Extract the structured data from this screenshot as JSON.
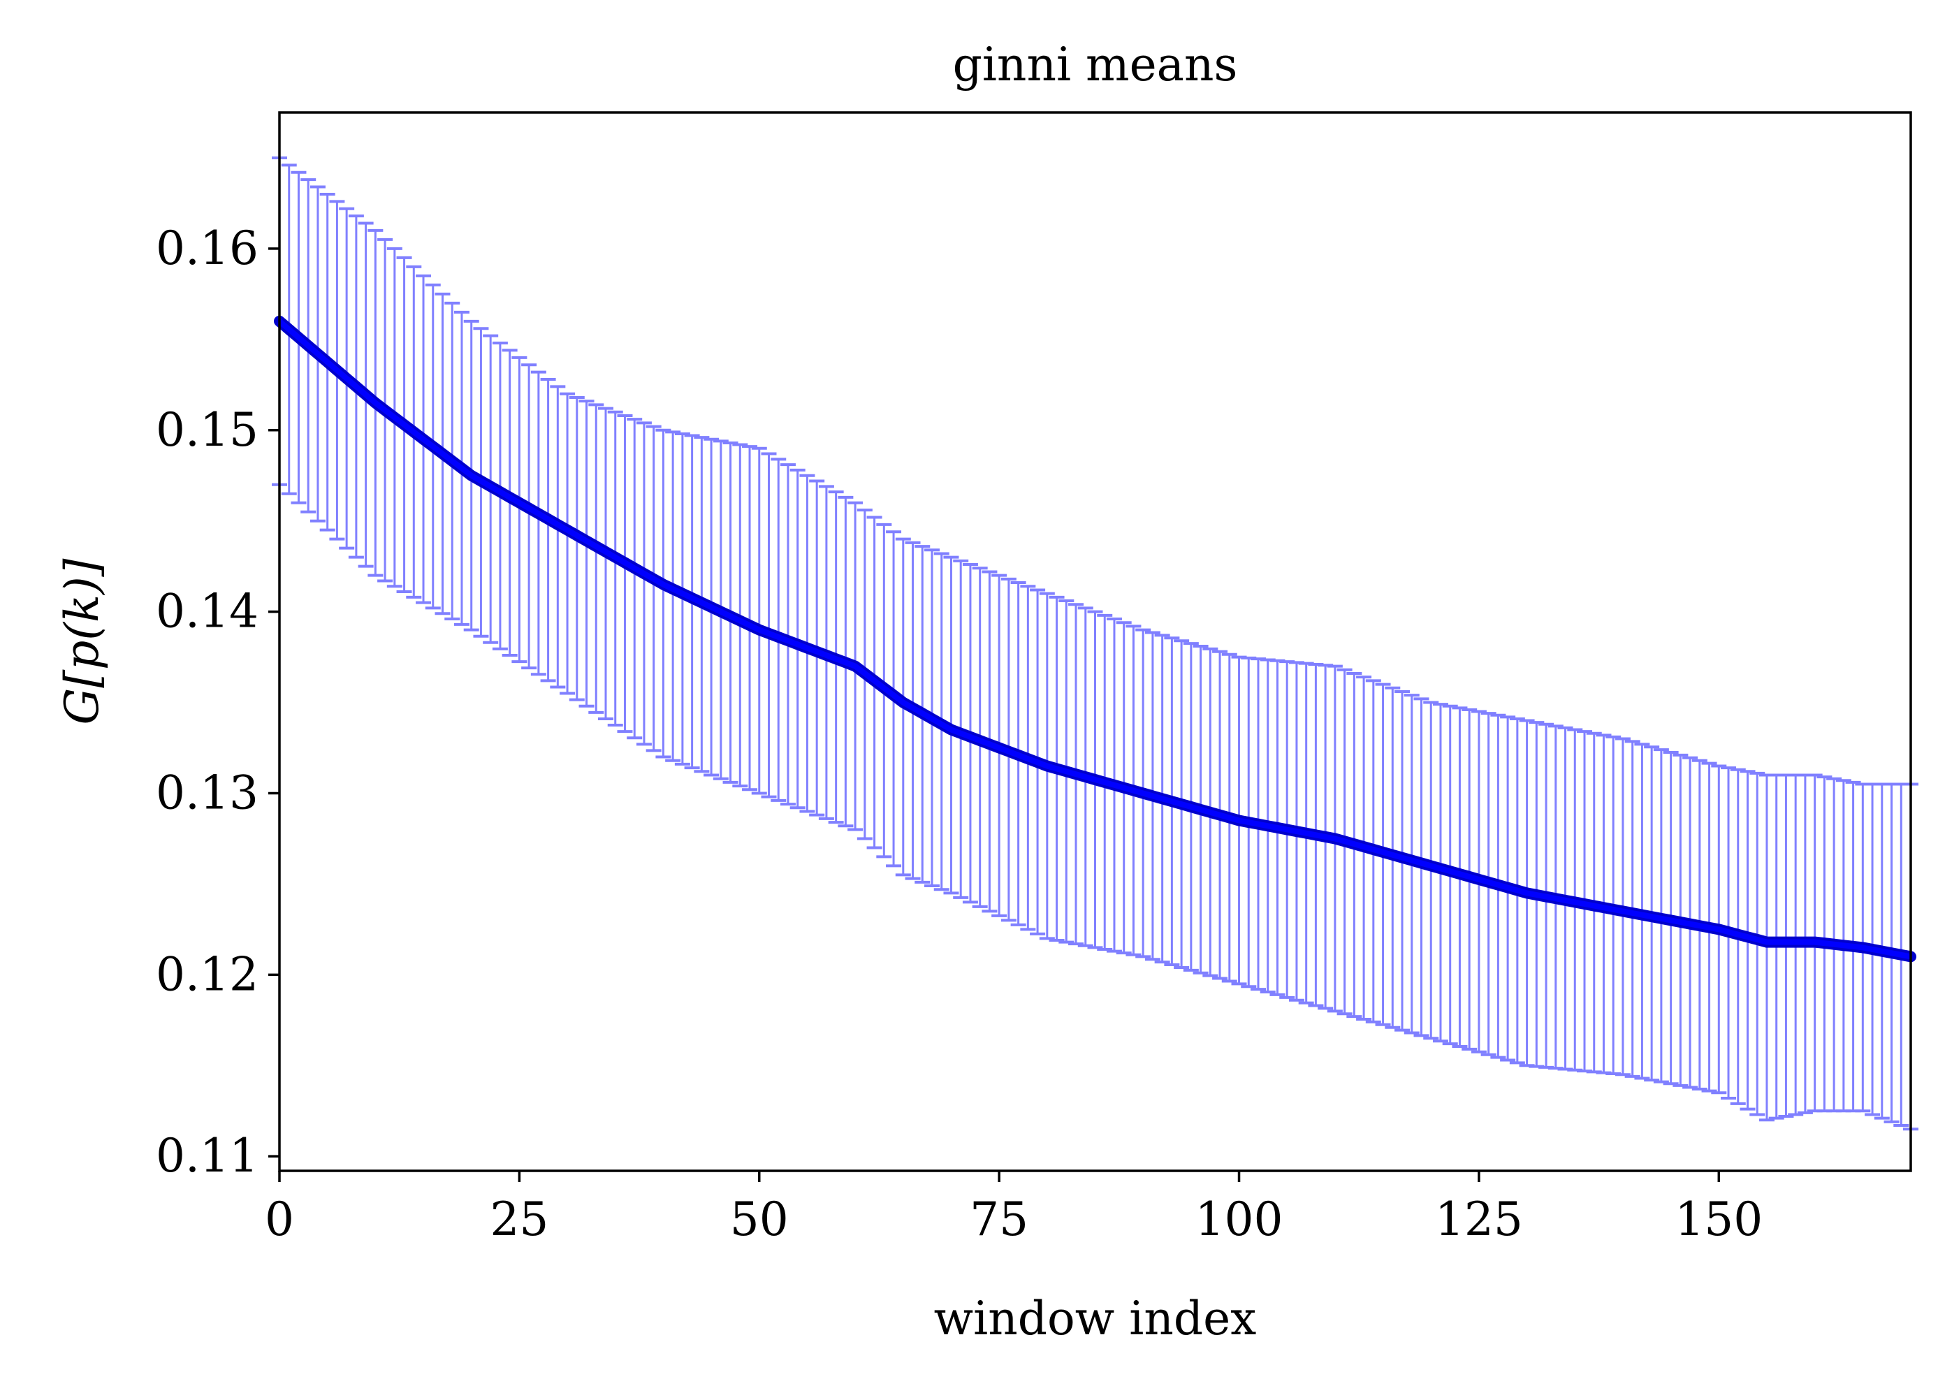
{
  "chart_data": {
    "type": "line",
    "title": "ginni means",
    "xlabel": "window index",
    "ylabel": "G[p(k)]",
    "xlim": [
      0,
      170
    ],
    "ylim": [
      0.1092,
      0.1675
    ],
    "xticks": [
      0,
      25,
      50,
      75,
      100,
      125,
      150
    ],
    "xtick_labels": [
      "0",
      "25",
      "50",
      "75",
      "100",
      "125",
      "150"
    ],
    "yticks": [
      0.11,
      0.12,
      0.13,
      0.14,
      0.15,
      0.16
    ],
    "ytick_labels": [
      "0.11",
      "0.12",
      "0.13",
      "0.14",
      "0.15",
      "0.16"
    ],
    "grid": false,
    "colors": {
      "line": "#0000ff",
      "errorbar": "#8080ff",
      "axes": "#000000"
    },
    "series": [
      {
        "x": [
          0,
          10,
          20,
          30,
          40,
          50,
          60,
          65,
          70,
          80,
          90,
          100,
          110,
          120,
          130,
          140,
          150,
          155,
          160,
          165,
          170
        ],
        "values": [
          0.156,
          0.1515,
          0.1475,
          0.1445,
          0.1415,
          0.139,
          0.137,
          0.135,
          0.1335,
          0.1315,
          0.13,
          0.1285,
          0.1275,
          0.126,
          0.1245,
          0.1235,
          0.1225,
          0.1218,
          0.1218,
          0.1215,
          0.121
        ],
        "err_upper": [
          0.165,
          0.161,
          0.156,
          0.152,
          0.15,
          0.149,
          0.146,
          0.144,
          0.143,
          0.141,
          0.139,
          0.1375,
          0.137,
          0.135,
          0.134,
          0.133,
          0.1315,
          0.131,
          0.131,
          0.1305,
          0.1305
        ],
        "err_lower": [
          0.147,
          0.142,
          0.139,
          0.1355,
          0.132,
          0.13,
          0.128,
          0.1255,
          0.1245,
          0.122,
          0.121,
          0.1195,
          0.118,
          0.1165,
          0.115,
          0.1145,
          0.1135,
          0.112,
          0.1125,
          0.1125,
          0.1115
        ]
      }
    ]
  }
}
